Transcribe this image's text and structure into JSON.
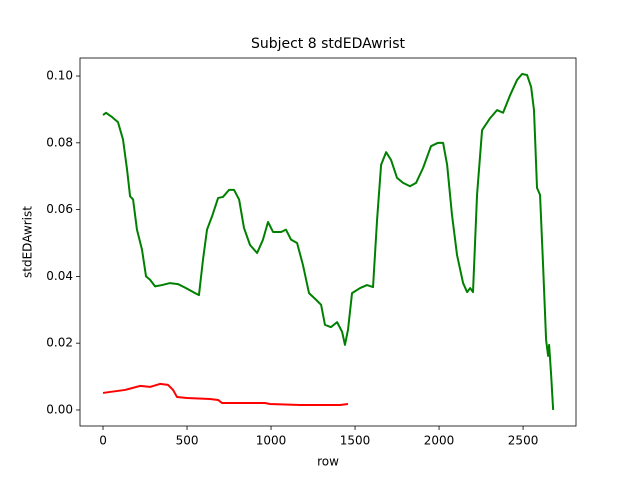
{
  "chart_data": {
    "type": "line",
    "title": "Subject 8 stdEDAwrist",
    "x_label": "row",
    "y_label": "stdEDAwrist",
    "xlim": [
      -137,
      2815
    ],
    "ylim": [
      -0.0048,
      0.1054
    ],
    "xticks": [
      0,
      500,
      1000,
      1500,
      2000,
      2500
    ],
    "yticks": [
      {
        "value": 0,
        "label": "0.00"
      },
      0.02,
      0.04,
      0.06,
      0.08,
      {
        "value": 0.1,
        "label": "0.10"
      }
    ],
    "series": [
      {
        "color": "#008000",
        "x": [
          0,
          18,
          54,
          89,
          119,
          143,
          161,
          179,
          202,
          232,
          256,
          280,
          310,
          351,
          399,
          446,
          494,
          548,
          571,
          595,
          619,
          649,
          685,
          714,
          750,
          780,
          810,
          839,
          875,
          917,
          952,
          982,
          1012,
          1060,
          1089,
          1119,
          1155,
          1190,
          1226,
          1268,
          1298,
          1321,
          1357,
          1393,
          1423,
          1440,
          1458,
          1482,
          1530,
          1571,
          1607,
          1631,
          1655,
          1685,
          1714,
          1750,
          1786,
          1827,
          1863,
          1905,
          1952,
          1994,
          2024,
          2048,
          2077,
          2107,
          2143,
          2167,
          2185,
          2202,
          2226,
          2256,
          2304,
          2345,
          2381,
          2423,
          2464,
          2494,
          2524,
          2548,
          2565,
          2583,
          2601,
          2619,
          2637,
          2649,
          2655,
          2667,
          2679
        ],
        "values": [
          0.0883,
          0.089,
          0.0877,
          0.0862,
          0.081,
          0.072,
          0.064,
          0.063,
          0.054,
          0.048,
          0.04,
          0.039,
          0.037,
          0.0374,
          0.038,
          0.0377,
          0.0365,
          0.035,
          0.0344,
          0.045,
          0.054,
          0.058,
          0.0635,
          0.0638,
          0.0659,
          0.0659,
          0.063,
          0.0545,
          0.0494,
          0.047,
          0.051,
          0.0563,
          0.0533,
          0.0533,
          0.054,
          0.051,
          0.05,
          0.0434,
          0.035,
          0.033,
          0.0315,
          0.0255,
          0.0248,
          0.0263,
          0.0234,
          0.0195,
          0.024,
          0.035,
          0.0365,
          0.0374,
          0.0368,
          0.0569,
          0.0734,
          0.0772,
          0.0749,
          0.0695,
          0.068,
          0.067,
          0.068,
          0.0725,
          0.079,
          0.08,
          0.08,
          0.0734,
          0.0584,
          0.0464,
          0.038,
          0.0353,
          0.0365,
          0.0353,
          0.0644,
          0.0838,
          0.0874,
          0.0898,
          0.089,
          0.0943,
          0.0988,
          0.1006,
          0.1003,
          0.0967,
          0.0898,
          0.0665,
          0.0644,
          0.0434,
          0.021,
          0.0162,
          0.0195,
          0.0105,
          0.0
        ]
      },
      {
        "color": "#ff0000",
        "x": [
          0,
          42,
          131,
          220,
          280,
          339,
          387,
          417,
          440,
          500,
          637,
          685,
          708,
          875,
          964,
          994,
          1173,
          1351,
          1411,
          1458
        ],
        "values": [
          0.0051,
          0.0054,
          0.006,
          0.0072,
          0.0069,
          0.0078,
          0.0075,
          0.006,
          0.0039,
          0.0036,
          0.0033,
          0.003,
          0.0021,
          0.0021,
          0.0021,
          0.0018,
          0.0015,
          0.0015,
          0.0015,
          0.0018
        ]
      }
    ]
  }
}
